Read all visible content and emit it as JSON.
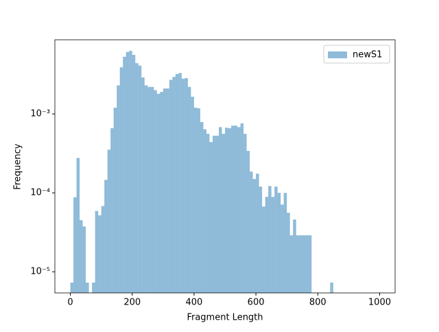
{
  "chart_data": {
    "type": "histogram",
    "xlabel": "Fragment Length",
    "ylabel": "Frequency",
    "bins": [
      0,
      10,
      20,
      30,
      40,
      50,
      60,
      70,
      80,
      90,
      100,
      110,
      120,
      130,
      140,
      150,
      160,
      170,
      180,
      190,
      200,
      210,
      220,
      230,
      240,
      250,
      260,
      270,
      280,
      290,
      300,
      310,
      320,
      330,
      340,
      350,
      360,
      370,
      380,
      390,
      400,
      410,
      420,
      430,
      440,
      450,
      460,
      470,
      480,
      490,
      500,
      510,
      520,
      530,
      540,
      550,
      560,
      570,
      580,
      590,
      600,
      610,
      620,
      630,
      640,
      650,
      660,
      670,
      680,
      690,
      700,
      710,
      720,
      730,
      740,
      750,
      760,
      770,
      780,
      790,
      800,
      810,
      820,
      830,
      840,
      850,
      860,
      870,
      880,
      890,
      900,
      910,
      920,
      930,
      940,
      950,
      960,
      970,
      980,
      990,
      1000
    ],
    "series": [
      {
        "name": "newS1",
        "color": "#1f77b4",
        "alpha": 0.5,
        "values": [
          7.3e-06,
          8.8e-05,
          0.000277,
          4.5e-05,
          3.75e-05,
          7.3e-06,
          0,
          7.3e-06,
          5.9e-05,
          5.2e-05,
          6.8e-05,
          0.000146,
          0.000353,
          0.00066,
          0.0012,
          0.0023,
          0.0039,
          0.0053,
          0.0061,
          0.0063,
          0.0056,
          0.0044,
          0.0041,
          0.0029,
          0.0023,
          0.0022,
          0.0022,
          0.002,
          0.0018,
          0.0019,
          0.0021,
          0.0021,
          0.0027,
          0.00295,
          0.0032,
          0.0033,
          0.0028,
          0.00285,
          0.0022,
          0.00165,
          0.0012,
          0.00118,
          0.00079,
          0.00064,
          0.00056,
          0.00044,
          0.00053,
          0.00053,
          0.00068,
          0.00056,
          0.00067,
          0.00066,
          0.00071,
          0.00071,
          0.00068,
          0.00076,
          0.00056,
          0.00034,
          0.000186,
          0.00015,
          0.000175,
          0.00012,
          6.7e-05,
          8.9e-05,
          0.000122,
          8.9e-05,
          0.00012,
          0.0001,
          7.1e-05,
          0.0001,
          5.6e-05,
          2.9e-05,
          4.6e-05,
          2.9e-05,
          2.9e-05,
          2.9e-05,
          2.9e-05,
          2.9e-05,
          0,
          0,
          0,
          0,
          0,
          0,
          7.3e-06,
          0,
          0,
          0,
          0,
          0,
          0,
          0,
          0,
          0,
          0,
          0,
          0,
          0,
          0,
          0
        ]
      }
    ],
    "xlim": [
      -50,
      1050
    ],
    "xticks": [
      0,
      200,
      400,
      600,
      800,
      1000
    ],
    "ylim": [
      5.4e-06,
      0.0087
    ],
    "ylog": true,
    "yticks": [
      {
        "value": 1e-05,
        "label": "10⁻⁵"
      },
      {
        "value": 0.0001,
        "label": "10⁻⁴"
      },
      {
        "value": 0.001,
        "label": "10⁻³"
      }
    ],
    "legend": "upper right",
    "grid": false
  }
}
